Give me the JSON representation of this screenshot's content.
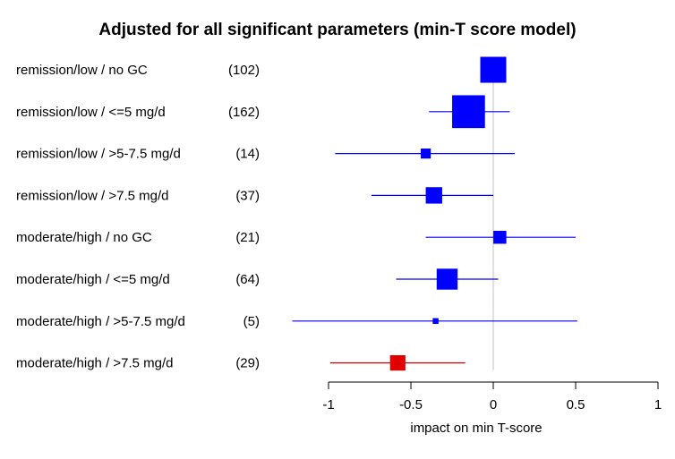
{
  "chart_data": {
    "type": "forest",
    "title": "Adjusted for all significant parameters (min-T score model)",
    "xlabel": "impact on min T-score",
    "xlim": [
      -1,
      1
    ],
    "xticks": [
      -1,
      -0.5,
      0,
      0.5,
      1
    ],
    "xtick_labels": [
      "-1",
      "-0.5",
      "0",
      "0.5",
      "1"
    ],
    "reference_line": 0,
    "colors": {
      "default": "#0000ff",
      "highlight": "#e00000",
      "reference": "#c0c0c0"
    },
    "rows": [
      {
        "label": "remission/low / no GC",
        "n": "(102)",
        "estimate": 0.0,
        "ci_low": null,
        "ci_high": null,
        "weight": 1.0,
        "color": "default"
      },
      {
        "label": "remission/low / <=5 mg/d",
        "n": "(162)",
        "estimate": -0.15,
        "ci_low": -0.39,
        "ci_high": 0.1,
        "weight": 1.6,
        "color": "default"
      },
      {
        "label": "remission/low / >5-7.5 mg/d",
        "n": "(14)",
        "estimate": -0.41,
        "ci_low": -0.96,
        "ci_high": 0.13,
        "weight": 0.15,
        "color": "default"
      },
      {
        "label": "remission/low / >7.5 mg/d",
        "n": "(37)",
        "estimate": -0.36,
        "ci_low": -0.74,
        "ci_high": 0.0,
        "weight": 0.4,
        "color": "default"
      },
      {
        "label": "moderate/high / no GC",
        "n": "(21)",
        "estimate": 0.04,
        "ci_low": -0.41,
        "ci_high": 0.5,
        "weight": 0.25,
        "color": "default"
      },
      {
        "label": "moderate/high / <=5 mg/d",
        "n": "(64)",
        "estimate": -0.28,
        "ci_low": -0.59,
        "ci_high": 0.03,
        "weight": 0.65,
        "color": "default"
      },
      {
        "label": "moderate/high / >5-7.5 mg/d",
        "n": "(5)",
        "estimate": -0.35,
        "ci_low": -1.22,
        "ci_high": 0.51,
        "weight": 0.05,
        "color": "default"
      },
      {
        "label": "moderate/high / >7.5 mg/d",
        "n": "(29)",
        "estimate": -0.58,
        "ci_low": -0.99,
        "ci_high": -0.17,
        "weight": 0.35,
        "color": "highlight"
      }
    ]
  }
}
